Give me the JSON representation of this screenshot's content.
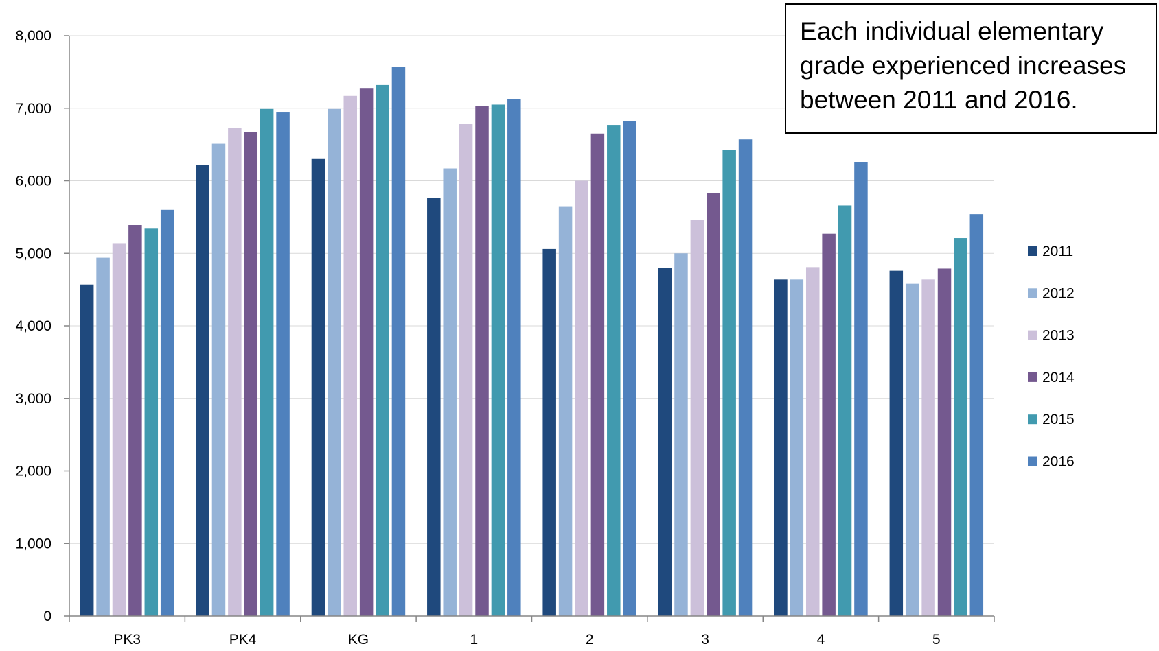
{
  "annotation": "Each individual elementary grade experienced increases between 2011 and 2016.",
  "chart_data": {
    "type": "bar",
    "title": "",
    "xlabel": "",
    "ylabel": "",
    "ylim": [
      0,
      8000
    ],
    "yticks": [
      0,
      1000,
      2000,
      3000,
      4000,
      5000,
      6000,
      7000,
      8000
    ],
    "ytick_labels": [
      "0",
      "1,000",
      "2,000",
      "3,000",
      "4,000",
      "5,000",
      "6,000",
      "7,000",
      "8,000"
    ],
    "grid": true,
    "legend_position": "right",
    "categories": [
      "PK3",
      "PK4",
      "KG",
      "1",
      "2",
      "3",
      "4",
      "5"
    ],
    "series": [
      {
        "name": "2011",
        "color": "#1F497D",
        "values": [
          4570,
          6220,
          6300,
          5760,
          5060,
          4800,
          4640,
          4760
        ]
      },
      {
        "name": "2012",
        "color": "#95B3D7",
        "values": [
          4940,
          6510,
          6990,
          6170,
          5640,
          5000,
          4640,
          4580
        ]
      },
      {
        "name": "2013",
        "color": "#CCC0DA",
        "values": [
          5140,
          6730,
          7170,
          6780,
          6000,
          5460,
          4810,
          4640
        ]
      },
      {
        "name": "2014",
        "color": "#74598F",
        "values": [
          5390,
          6670,
          7270,
          7030,
          6650,
          5830,
          5270,
          4790
        ]
      },
      {
        "name": "2015",
        "color": "#419AAF",
        "values": [
          5340,
          6990,
          7320,
          7050,
          6770,
          6430,
          5660,
          5210
        ]
      },
      {
        "name": "2016",
        "color": "#4F81BD",
        "values": [
          5600,
          6950,
          7570,
          7130,
          6820,
          6570,
          6260,
          5540
        ]
      }
    ]
  }
}
